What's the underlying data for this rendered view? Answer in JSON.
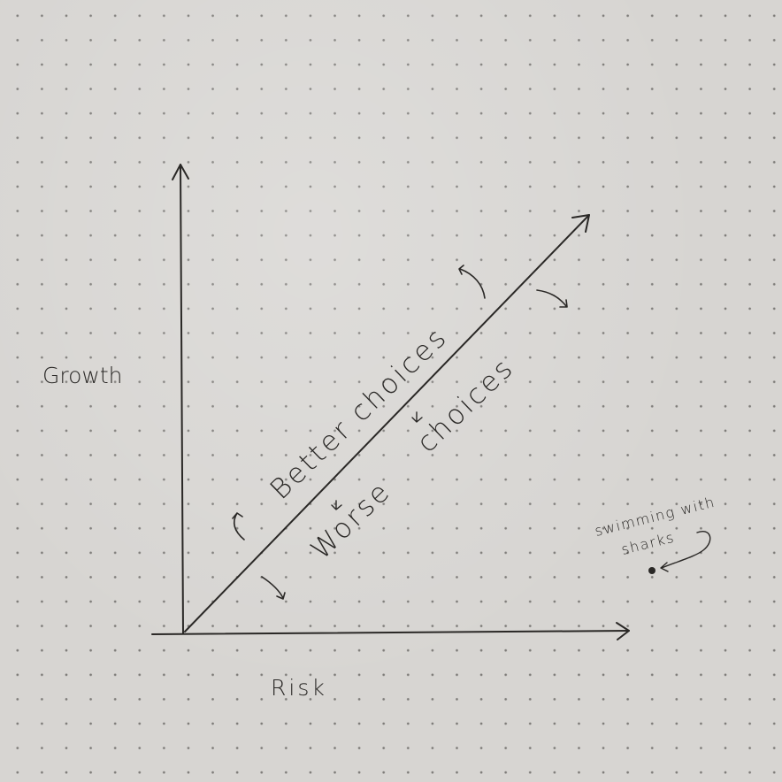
{
  "axes": {
    "y_label": "Growth",
    "x_label": "Risk"
  },
  "diagonal": {
    "upper_label": "Better choices",
    "lower_label_1": "Worse",
    "lower_label_2": "choices"
  },
  "annotation": {
    "line_1": "swimming with",
    "line_2": "sharks"
  },
  "colors": {
    "paper": "#d7d5d2",
    "ink": "#2a2826",
    "dot_grid": "#7d7b78"
  }
}
